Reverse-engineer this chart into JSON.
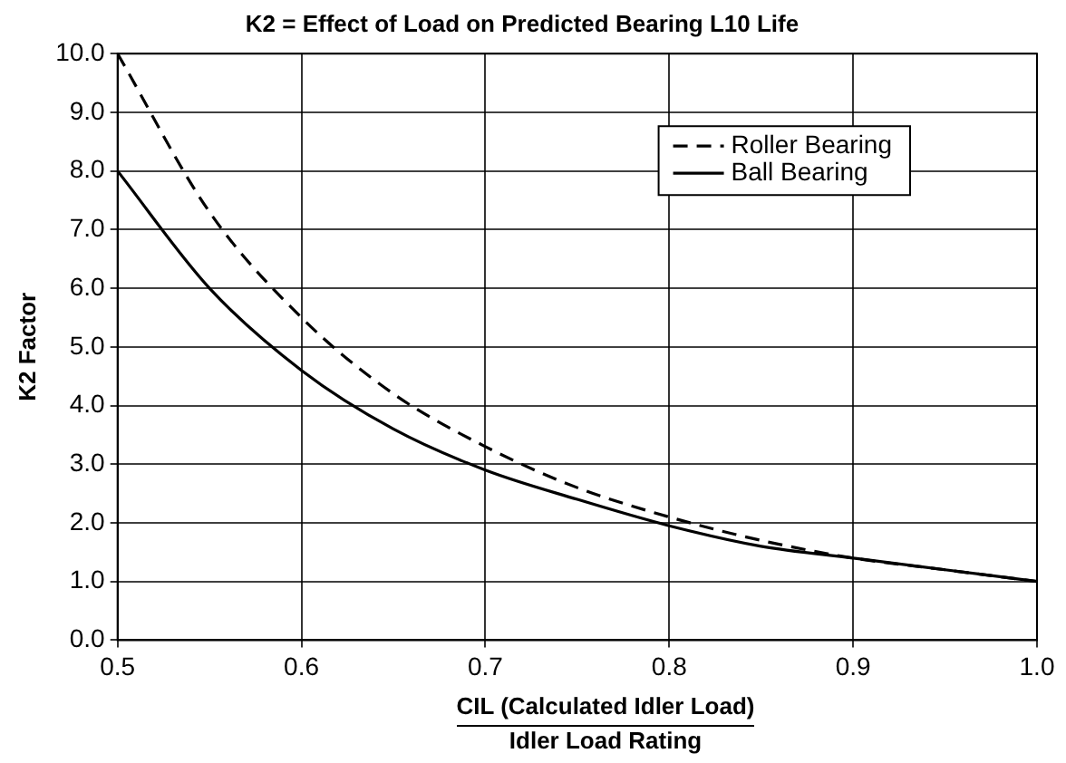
{
  "chart_data": {
    "type": "line",
    "title": "K2 = Effect of Load on Predicted Bearing L10 Life",
    "xlabel": "CIL (Calculated Idler Load)\nIdler Load Rating",
    "ylabel": "K2 Factor",
    "x": [
      0.5,
      0.55,
      0.6,
      0.65,
      0.7,
      0.75,
      0.8,
      0.85,
      0.9,
      0.95,
      1.0
    ],
    "series": [
      {
        "name": "Roller Bearing",
        "color": "#000000",
        "line_style": "dashed",
        "values": [
          10.0,
          7.3,
          5.5,
          4.2,
          3.3,
          2.6,
          2.1,
          1.7,
          1.4,
          1.2,
          1.0
        ]
      },
      {
        "name": "Ball Bearing",
        "color": "#000000",
        "line_style": "solid",
        "values": [
          8.0,
          6.0,
          4.6,
          3.6,
          2.9,
          2.4,
          1.95,
          1.6,
          1.4,
          1.2,
          1.0
        ]
      }
    ],
    "xlim": [
      0.5,
      1.0
    ],
    "xticks": [
      0.5,
      0.6,
      0.7,
      0.8,
      0.9,
      {
        "value": 1,
        "label": "1.0"
      }
    ],
    "ylim": [
      0,
      10
    ],
    "yticks": [
      {
        "value": 0,
        "label": "0.0"
      },
      {
        "value": 1,
        "label": "1.0"
      },
      {
        "value": 2,
        "label": "2.0"
      },
      {
        "value": 3,
        "label": "3.0"
      },
      {
        "value": 4,
        "label": "4.0"
      },
      {
        "value": 5,
        "label": "5.0"
      },
      {
        "value": 6,
        "label": "6.0"
      },
      {
        "value": 7,
        "label": "7.0"
      },
      {
        "value": 8,
        "label": "8.0"
      },
      {
        "value": 9,
        "label": "9.0"
      },
      {
        "value": 10,
        "label": "10.0"
      }
    ],
    "grid": true,
    "legend": "top right",
    "marker": "none"
  }
}
